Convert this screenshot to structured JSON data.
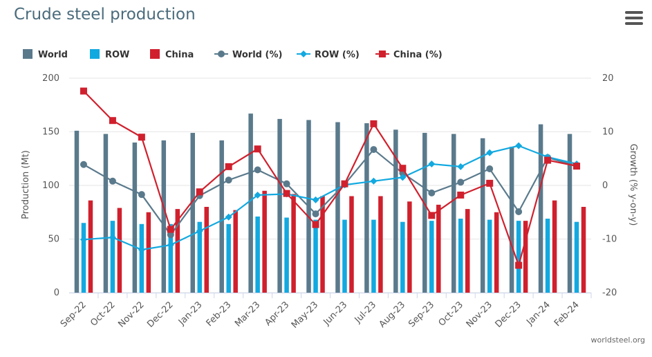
{
  "title": "Crude steel production",
  "source": "worldsteel.org",
  "menu_icon": "hamburger-menu-icon",
  "chart_data": {
    "type": "bar",
    "categories": [
      "Sep-22",
      "Oct-22",
      "Nov-22",
      "Dec-22",
      "Jan-23",
      "Feb-23",
      "Mar-23",
      "Apr-23",
      "May-23",
      "Jun-23",
      "Jul-23",
      "Aug-23",
      "Sep-23",
      "Oct-23",
      "Nov-23",
      "Dec-23",
      "Jan-24",
      "Feb-24"
    ],
    "ylabel": "Production (Mt)",
    "ylabel_right": "Growth (% y-on-y)",
    "ylim": [
      0,
      200
    ],
    "y_ticks": [
      0,
      50,
      100,
      150,
      200
    ],
    "ylim_right": [
      -20,
      20
    ],
    "y_ticks_right": [
      -20,
      -10,
      0,
      10,
      20
    ],
    "grid": true,
    "legend_position": "top-left",
    "series": [
      {
        "name": "World",
        "kind": "bar",
        "axis": "left",
        "color": "#5a7a8c",
        "values": [
          151,
          148,
          140,
          142,
          149,
          142,
          167,
          162,
          161,
          159,
          158,
          152,
          149,
          148,
          144,
          136,
          157,
          148
        ]
      },
      {
        "name": "ROW",
        "kind": "bar",
        "axis": "left",
        "color": "#12a9e0",
        "values": [
          65,
          67,
          64,
          64,
          66,
          64,
          71,
          70,
          68,
          68,
          68,
          66,
          67,
          69,
          68,
          67,
          69,
          66
        ]
      },
      {
        "name": "China",
        "kind": "bar",
        "axis": "left",
        "color": "#d0202d",
        "values": [
          86,
          79,
          75,
          78,
          80,
          77,
          95,
          92,
          90,
          90,
          90,
          85,
          82,
          78,
          75,
          67,
          86,
          80
        ]
      },
      {
        "name": "World (%)",
        "kind": "line",
        "axis": "right",
        "color": "#5a7a8c",
        "marker": "circle",
        "values": [
          3.9,
          0.8,
          -1.7,
          -9.2,
          -1.9,
          1.0,
          2.9,
          0.3,
          -5.3,
          0.2,
          6.7,
          2.3,
          -1.4,
          0.6,
          3.1,
          -4.9,
          5.2,
          3.6
        ]
      },
      {
        "name": "ROW (%)",
        "kind": "line",
        "axis": "right",
        "color": "#12a9e0",
        "marker": "diamond",
        "values": [
          -10.1,
          -9.7,
          -12.0,
          -11.1,
          -8.5,
          -5.9,
          -1.8,
          -1.6,
          -2.7,
          0.1,
          0.8,
          1.5,
          4.0,
          3.5,
          6.1,
          7.4,
          5.3,
          4.0
        ]
      },
      {
        "name": "China (%)",
        "kind": "line",
        "axis": "right",
        "color": "#d0202d",
        "marker": "square",
        "values": [
          17.6,
          12.1,
          9.0,
          -8.2,
          -1.2,
          3.5,
          6.8,
          -1.5,
          -7.3,
          0.3,
          11.5,
          3.2,
          -5.6,
          -1.8,
          0.4,
          -14.9,
          4.7,
          3.6
        ]
      }
    ]
  }
}
